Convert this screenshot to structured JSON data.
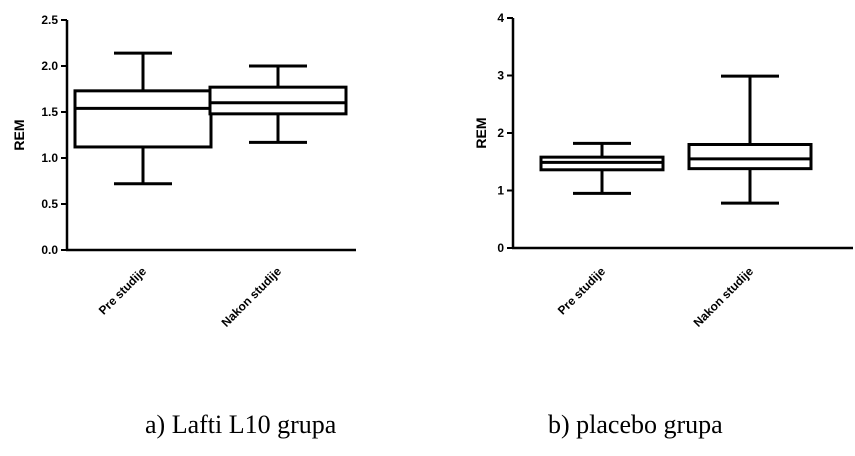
{
  "chart_data": [
    {
      "type": "box",
      "caption": "a) Lafti L10 grupa",
      "ylabel": "REM",
      "ylim": [
        0,
        2.5
      ],
      "yticks": [
        "0.0",
        "0.5",
        "1.0",
        "1.5",
        "2.0",
        "2.5"
      ],
      "categories": [
        "Pre studije",
        "Nakon studije"
      ],
      "boxes": [
        {
          "min": 0.72,
          "q1": 1.12,
          "median": 1.54,
          "q3": 1.73,
          "max": 2.14
        },
        {
          "min": 1.17,
          "q1": 1.48,
          "median": 1.6,
          "q3": 1.77,
          "max": 2.0
        }
      ],
      "grid": false
    },
    {
      "type": "box",
      "caption": "b) placebo grupa",
      "ylabel": "REM",
      "ylim": [
        0,
        4
      ],
      "yticks": [
        "0",
        "1",
        "2",
        "3",
        "4"
      ],
      "categories": [
        "Pre studije",
        "Nakon studije"
      ],
      "boxes": [
        {
          "min": 0.95,
          "q1": 1.36,
          "median": 1.49,
          "q3": 1.58,
          "max": 1.82
        },
        {
          "min": 0.78,
          "q1": 1.38,
          "median": 1.55,
          "q3": 1.8,
          "max": 2.99
        }
      ],
      "grid": false
    }
  ]
}
